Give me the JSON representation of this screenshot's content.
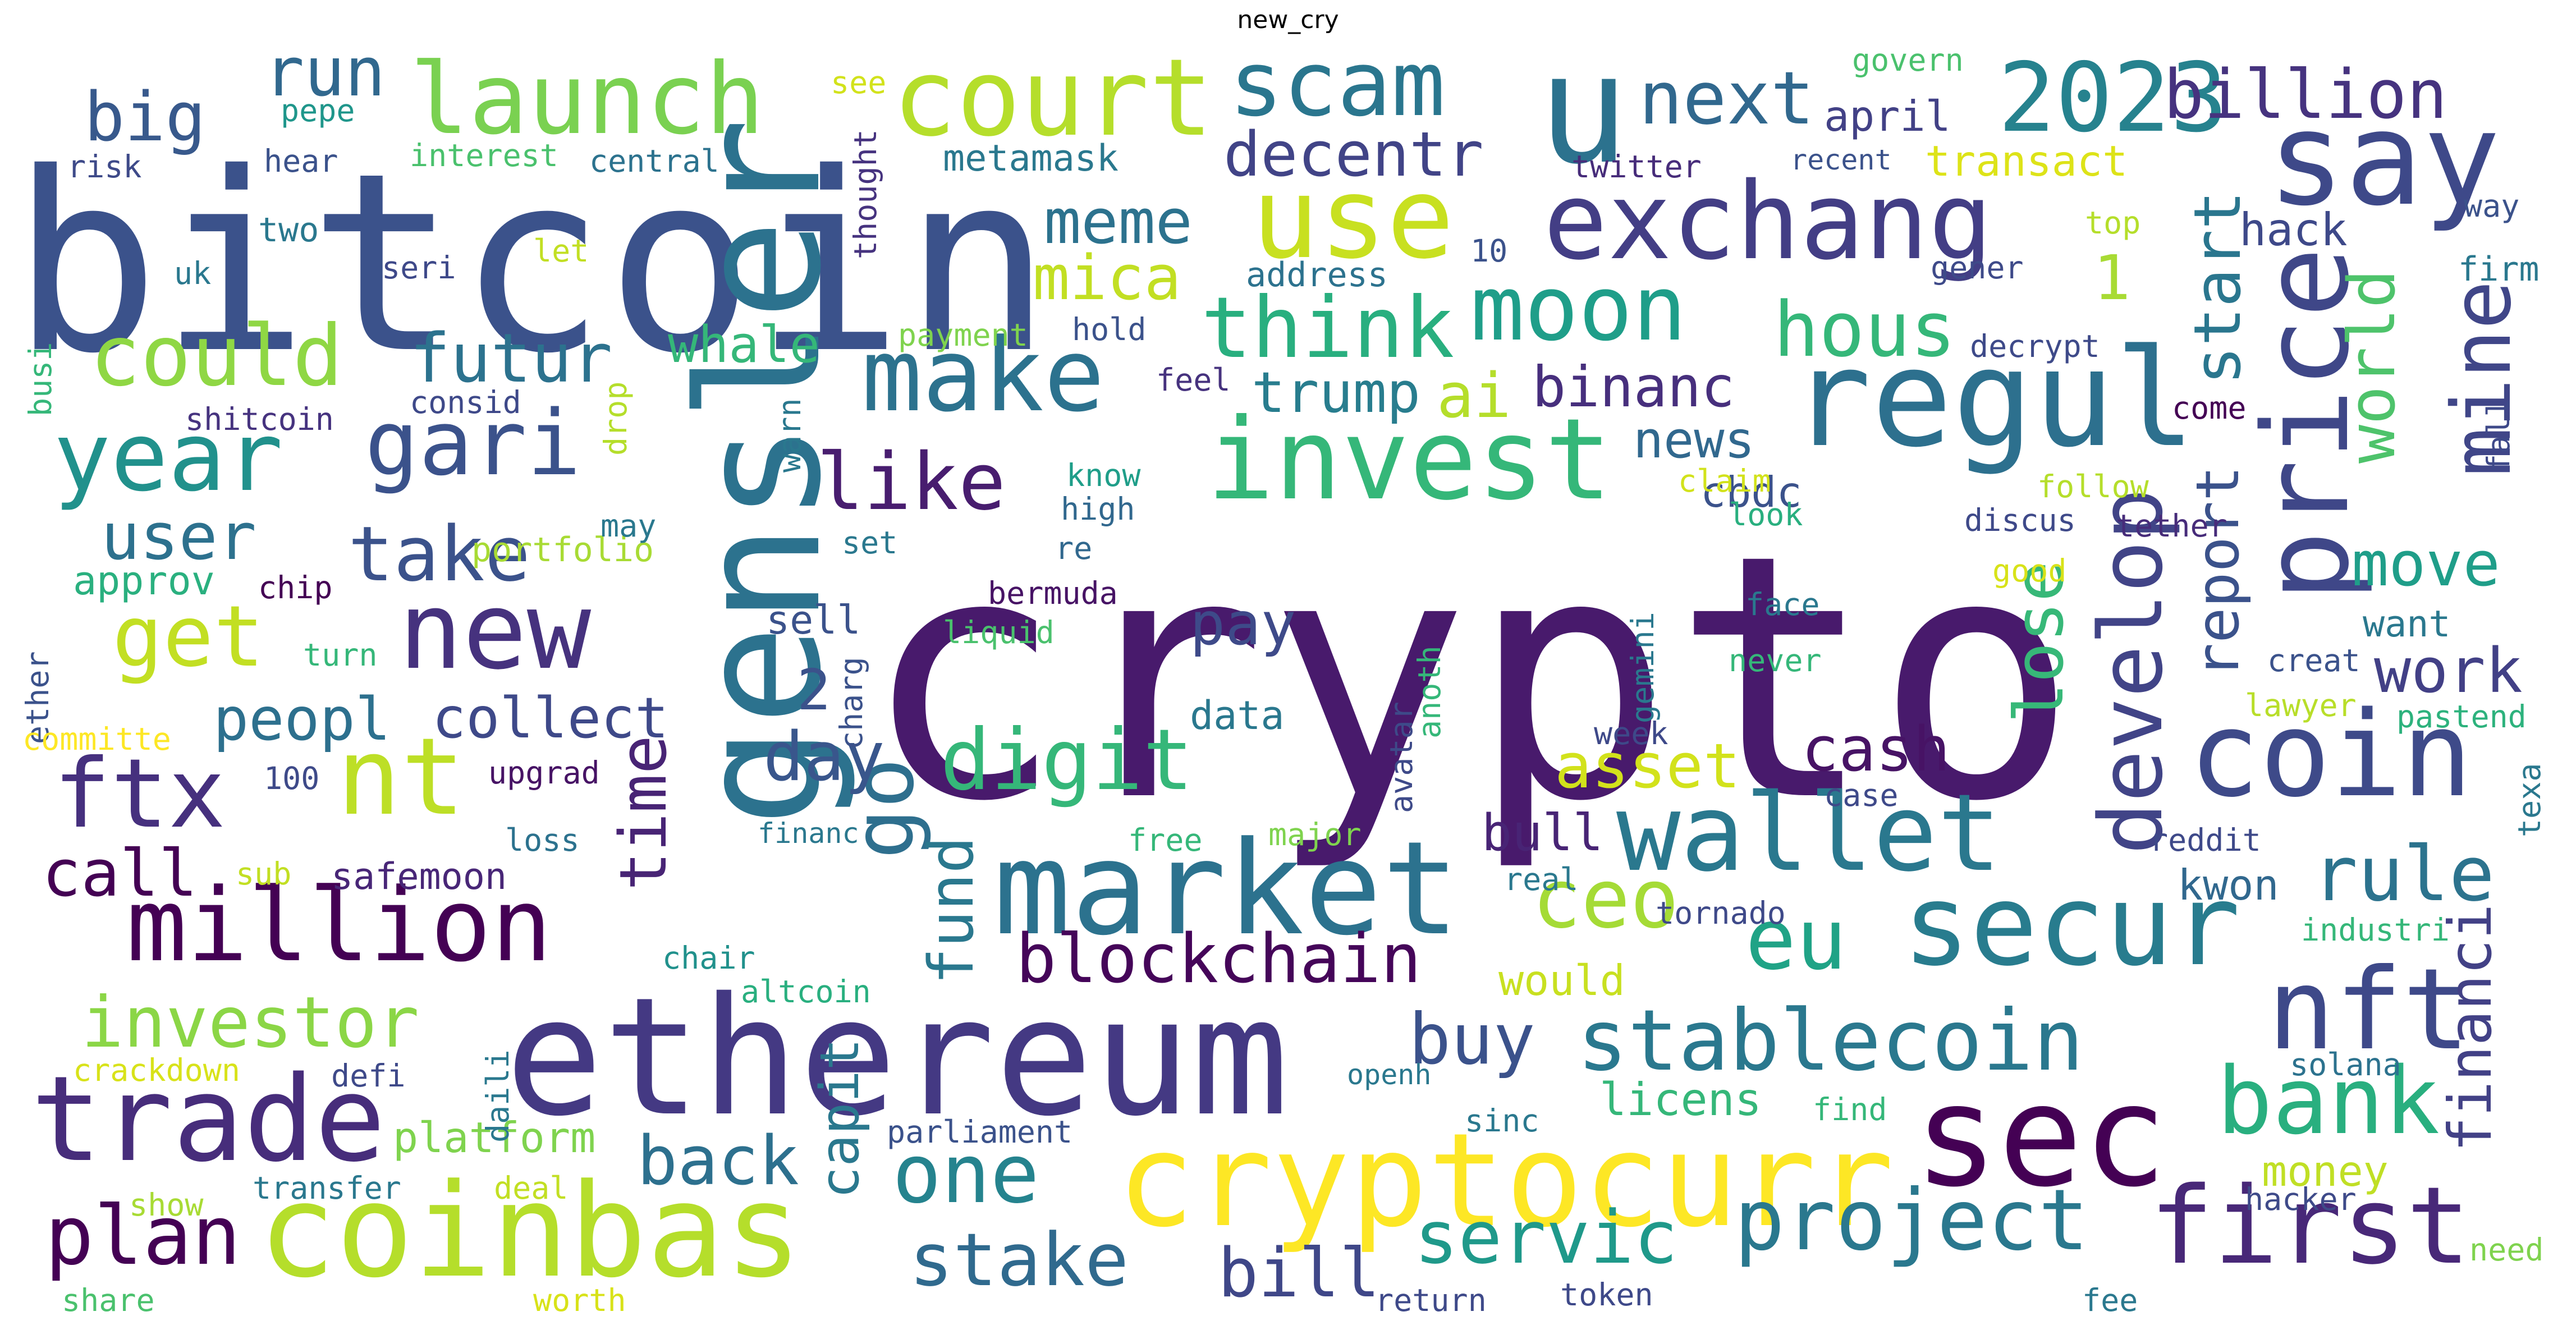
{
  "title": "new_cry",
  "words": [
    {
      "text": "crypto",
      "color": "#481a6c"
    },
    {
      "text": "bitcoin",
      "color": "#3b528b"
    },
    {
      "text": "ethereum",
      "color": "#443983"
    },
    {
      "text": "gensler",
      "color": "#2c728e"
    },
    {
      "text": "cryptocurr",
      "color": "#fde725"
    },
    {
      "text": "coinbas",
      "color": "#b5de2b"
    },
    {
      "text": "u",
      "color": "#2c728e"
    },
    {
      "text": "exchang",
      "color": "#433e85"
    },
    {
      "text": "market",
      "color": "#2c728e"
    },
    {
      "text": "regul",
      "color": "#2d708e"
    },
    {
      "text": "invest",
      "color": "#35b779"
    },
    {
      "text": "say",
      "color": "#3e4989"
    },
    {
      "text": "sec",
      "color": "#440154"
    },
    {
      "text": "trade",
      "color": "#472d7b"
    },
    {
      "text": "secur",
      "color": "#287c8e"
    },
    {
      "text": "price",
      "color": "#3f4788"
    },
    {
      "text": "coin",
      "color": "#3e4a89"
    },
    {
      "text": "use",
      "color": "#c8e020"
    },
    {
      "text": "court",
      "color": "#b5de2b"
    },
    {
      "text": "million",
      "color": "#440154"
    },
    {
      "text": "wallet",
      "color": "#2a788e"
    },
    {
      "text": "nft",
      "color": "#3e4989"
    },
    {
      "text": "new",
      "color": "#46327e"
    },
    {
      "text": "first",
      "color": "#482878"
    },
    {
      "text": "make",
      "color": "#2c728e"
    },
    {
      "text": "nt",
      "color": "#bddf26"
    },
    {
      "text": "launch",
      "color": "#7ad151"
    },
    {
      "text": "2023",
      "color": "#26828e"
    },
    {
      "text": "scam",
      "color": "#2a768e"
    },
    {
      "text": "ftx",
      "color": "#46307e"
    },
    {
      "text": "year",
      "color": "#21918c"
    },
    {
      "text": "stablecoin",
      "color": "#2a788e"
    },
    {
      "text": "project",
      "color": "#2a788e"
    },
    {
      "text": "digit",
      "color": "#35b779"
    },
    {
      "text": "bank",
      "color": "#29af7f"
    },
    {
      "text": "moon",
      "color": "#1f9e89"
    },
    {
      "text": "develop",
      "color": "#414487"
    },
    {
      "text": "gari",
      "color": "#3b528b"
    },
    {
      "text": "could",
      "color": "#8fd744"
    },
    {
      "text": "get",
      "color": "#c2df23"
    },
    {
      "text": "think",
      "color": "#29af7f"
    },
    {
      "text": "eu",
      "color": "#20a386"
    },
    {
      "text": "blockchain",
      "color": "#450559"
    },
    {
      "text": "mine",
      "color": "#404688"
    },
    {
      "text": "plan",
      "color": "#440154"
    },
    {
      "text": "ceo",
      "color": "#a5db36"
    },
    {
      "text": "go",
      "color": "#2e6f8e"
    },
    {
      "text": "one",
      "color": "#25838e"
    },
    {
      "text": "like",
      "color": "#481d6f"
    },
    {
      "text": "stake",
      "color": "#306a8e"
    },
    {
      "text": "billion",
      "color": "#46337f"
    },
    {
      "text": "next",
      "color": "#31688e"
    },
    {
      "text": "investor",
      "color": "#8bd646"
    },
    {
      "text": "servic",
      "color": "#1f998a"
    },
    {
      "text": "hous",
      "color": "#35b779"
    },
    {
      "text": "take",
      "color": "#3b528b"
    },
    {
      "text": "rule",
      "color": "#2c738e"
    },
    {
      "text": "buy",
      "color": "#3b528b"
    },
    {
      "text": "back",
      "color": "#2d708e"
    },
    {
      "text": "bill",
      "color": "#3f4788"
    },
    {
      "text": "day",
      "color": "#39568c"
    },
    {
      "text": "asset",
      "color": "#d2e21b"
    },
    {
      "text": "futur",
      "color": "#2c728e"
    },
    {
      "text": "time",
      "color": "#482475"
    },
    {
      "text": "lose",
      "color": "#37b878"
    },
    {
      "text": "fund",
      "color": "#2a788e"
    },
    {
      "text": "world",
      "color": "#4ec36b"
    },
    {
      "text": "start",
      "color": "#2a768e"
    },
    {
      "text": "user",
      "color": "#2d718e"
    },
    {
      "text": "cash",
      "color": "#471365"
    },
    {
      "text": "work",
      "color": "#424086"
    },
    {
      "text": "financi",
      "color": "#424186"
    },
    {
      "text": "call",
      "color": "#440154"
    },
    {
      "text": "report",
      "color": "#3b528b"
    },
    {
      "text": "pay",
      "color": "#3e4a89"
    },
    {
      "text": "move",
      "color": "#1f9e89"
    },
    {
      "text": "peopl",
      "color": "#2d708e"
    },
    {
      "text": "collect",
      "color": "#3e4989"
    },
    {
      "text": "meme",
      "color": "#2c728e"
    },
    {
      "text": "mica",
      "color": "#c2df23"
    },
    {
      "text": "binanc",
      "color": "#472f7d"
    },
    {
      "text": "run",
      "color": "#31688e"
    },
    {
      "text": "big",
      "color": "#38598c"
    },
    {
      "text": "ai",
      "color": "#b5de2b"
    },
    {
      "text": "trump",
      "color": "#287d8e"
    },
    {
      "text": "capit",
      "color": "#2a788e"
    },
    {
      "text": "news",
      "color": "#31688e"
    },
    {
      "text": "whale",
      "color": "#35b779"
    },
    {
      "text": "decentr",
      "color": "#414487"
    },
    {
      "text": "platform",
      "color": "#7fd34e"
    },
    {
      "text": "money",
      "color": "#c0df25"
    },
    {
      "text": "would",
      "color": "#c8e020"
    },
    {
      "text": "kwon",
      "color": "#31688e"
    },
    {
      "text": "safemoon",
      "color": "#482677"
    },
    {
      "text": "bull",
      "color": "#482475"
    },
    {
      "text": "approv",
      "color": "#2ab07f"
    },
    {
      "text": "1",
      "color": "#a8db34"
    },
    {
      "text": "2",
      "color": "#3b528b"
    },
    {
      "text": "hack",
      "color": "#3e4989"
    },
    {
      "text": "want",
      "color": "#2a788e"
    },
    {
      "text": "transact",
      "color": "#dde318"
    },
    {
      "text": "april",
      "color": "#424186"
    },
    {
      "text": "sell",
      "color": "#3b528b"
    },
    {
      "text": "data",
      "color": "#2a788e"
    },
    {
      "text": "cbdc",
      "color": "#3b528b"
    },
    {
      "text": "metamask",
      "color": "#2a788e"
    },
    {
      "text": "licens",
      "color": "#35b779"
    },
    {
      "text": "crackdown",
      "color": "#d8e219"
    },
    {
      "text": "parliament",
      "color": "#3b528b"
    },
    {
      "text": "twitter",
      "color": "#472c7a"
    },
    {
      "text": "portfolio",
      "color": "#a8db34"
    },
    {
      "text": "industri",
      "color": "#35b779"
    },
    {
      "text": "lawyer",
      "color": "#b8de29"
    },
    {
      "text": "hacker",
      "color": "#3e4a89"
    },
    {
      "text": "pastend",
      "color": "#2db27d"
    },
    {
      "text": "interest",
      "color": "#4ac16d"
    },
    {
      "text": "central",
      "color": "#2c728e"
    },
    {
      "text": "recent",
      "color": "#3b528b"
    },
    {
      "text": "pepe",
      "color": "#1f968b"
    },
    {
      "text": "risk",
      "color": "#3e4a89"
    },
    {
      "text": "hear",
      "color": "#3b528b"
    },
    {
      "text": "two",
      "color": "#2a788e"
    },
    {
      "text": "uk",
      "color": "#2a788e"
    },
    {
      "text": "seri",
      "color": "#3e4989"
    },
    {
      "text": "let",
      "color": "#c2df23"
    },
    {
      "text": "thought",
      "color": "#46337f"
    },
    {
      "text": "see",
      "color": "#d2e21b"
    },
    {
      "text": "govern",
      "color": "#4ac16d"
    },
    {
      "text": "address",
      "color": "#2c728e"
    },
    {
      "text": "10",
      "color": "#3b528b"
    },
    {
      "text": "gener",
      "color": "#3e4a89"
    },
    {
      "text": "top",
      "color": "#b5de2b"
    },
    {
      "text": "way",
      "color": "#3b528b"
    },
    {
      "text": "firm",
      "color": "#2a788e"
    },
    {
      "text": "payment",
      "color": "#7fd34e"
    },
    {
      "text": "hold",
      "color": "#3b528b"
    },
    {
      "text": "decrypt",
      "color": "#3e4a89"
    },
    {
      "text": "feel",
      "color": "#46327e"
    },
    {
      "text": "come",
      "color": "#440154"
    },
    {
      "text": "busi",
      "color": "#35b779"
    },
    {
      "text": "shitcoin",
      "color": "#46337f"
    },
    {
      "text": "consid",
      "color": "#3e4989"
    },
    {
      "text": "drop",
      "color": "#b5de2b"
    },
    {
      "text": "warn",
      "color": "#2a788e"
    },
    {
      "text": "know",
      "color": "#1f9e89"
    },
    {
      "text": "high",
      "color": "#31688e"
    },
    {
      "text": "claim",
      "color": "#d2e21b"
    },
    {
      "text": "follow",
      "color": "#b5de2b"
    },
    {
      "text": "fall",
      "color": "#3e4989"
    },
    {
      "text": "look",
      "color": "#29af7f"
    },
    {
      "text": "discus",
      "color": "#3e4989"
    },
    {
      "text": "tether",
      "color": "#472c7a"
    },
    {
      "text": "may",
      "color": "#2a788e"
    },
    {
      "text": "set",
      "color": "#2a788e"
    },
    {
      "text": "re",
      "color": "#31688e"
    },
    {
      "text": "chip",
      "color": "#440154"
    },
    {
      "text": "bermuda",
      "color": "#471365"
    },
    {
      "text": "liquid",
      "color": "#4ac16d"
    },
    {
      "text": "good",
      "color": "#d8e219"
    },
    {
      "text": "face",
      "color": "#2a788e"
    },
    {
      "text": "never",
      "color": "#35b779"
    },
    {
      "text": "ether",
      "color": "#3b528b"
    },
    {
      "text": "turn",
      "color": "#35b779"
    },
    {
      "text": "committe",
      "color": "#fde725"
    },
    {
      "text": "charg",
      "color": "#3b528b"
    },
    {
      "text": "gemini",
      "color": "#2a788e"
    },
    {
      "text": "avatar",
      "color": "#3e4a89"
    },
    {
      "text": "anoth",
      "color": "#35b779"
    },
    {
      "text": "creat",
      "color": "#3b528b"
    },
    {
      "text": "week",
      "color": "#3e4989"
    },
    {
      "text": "upgrad",
      "color": "#471365"
    },
    {
      "text": "100",
      "color": "#3e4a89"
    },
    {
      "text": "case",
      "color": "#3e4989"
    },
    {
      "text": "texa",
      "color": "#2a788e"
    },
    {
      "text": "loss",
      "color": "#2c728e"
    },
    {
      "text": "financ",
      "color": "#2a788e"
    },
    {
      "text": "free",
      "color": "#35b779"
    },
    {
      "text": "major",
      "color": "#7fd34e"
    },
    {
      "text": "reddit",
      "color": "#3e4989"
    },
    {
      "text": "real",
      "color": "#2a788e"
    },
    {
      "text": "sub",
      "color": "#c2df23"
    },
    {
      "text": "tornado",
      "color": "#3e4989"
    },
    {
      "text": "chair",
      "color": "#21918c"
    },
    {
      "text": "altcoin",
      "color": "#29af7f"
    },
    {
      "text": "solana",
      "color": "#2c728e"
    },
    {
      "text": "defi",
      "color": "#3e4989"
    },
    {
      "text": "daili",
      "color": "#2a788e"
    },
    {
      "text": "openh",
      "color": "#2a788e"
    },
    {
      "text": "sinc",
      "color": "#2a788e"
    },
    {
      "text": "find",
      "color": "#35b779"
    },
    {
      "text": "transfer",
      "color": "#2a788e"
    },
    {
      "text": "deal",
      "color": "#c2df23"
    },
    {
      "text": "show",
      "color": "#a8db34"
    },
    {
      "text": "share",
      "color": "#4ac16d"
    },
    {
      "text": "worth",
      "color": "#d8e219"
    },
    {
      "text": "return",
      "color": "#3e4989"
    },
    {
      "text": "token",
      "color": "#3e4989"
    },
    {
      "text": "fee",
      "color": "#2a788e"
    },
    {
      "text": "need",
      "color": "#7fd34e"
    }
  ]
}
